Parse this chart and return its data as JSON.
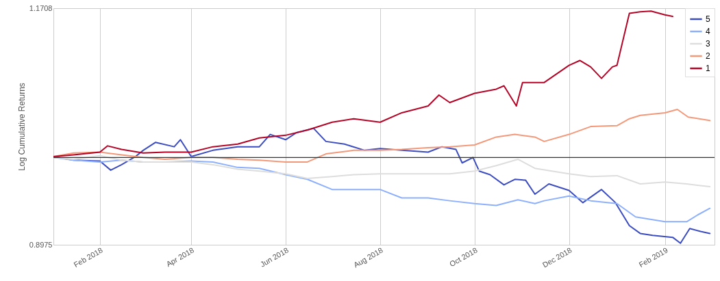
{
  "chart_data": {
    "type": "line",
    "ylabel": "Log Cumulative Returns",
    "log": "y",
    "grid": "x",
    "legend": "top right",
    "line_style": "solid",
    "marker": "none",
    "xlim": [
      "2018-01-02",
      "2019-03-05"
    ],
    "ylim": [
      0.8975,
      1.1708
    ],
    "yticks": [
      0.8975,
      1.1708
    ],
    "xticks": [
      {
        "value": "2018-02-01",
        "label": "Feb 2018"
      },
      {
        "value": "2018-04-01",
        "label": "Apr 2018"
      },
      {
        "value": "2018-06-01",
        "label": "Jun 2018"
      },
      {
        "value": "2018-08-01",
        "label": "Aug 2018"
      },
      {
        "value": "2018-10-01",
        "label": "Oct 2018"
      },
      {
        "value": "2018-12-01",
        "label": "Dec 2018"
      },
      {
        "value": "2019-02-01",
        "label": "Feb 2019"
      }
    ],
    "ref_lines": [
      {
        "axis": "y",
        "value": 0.99,
        "color": "#333333"
      }
    ],
    "series": [
      {
        "name": "5",
        "color": "#3b4cc0",
        "x": [
          "2018-01-02",
          "2018-01-15",
          "2018-02-01",
          "2018-02-08",
          "2018-02-15",
          "2018-02-24",
          "2018-03-01",
          "2018-03-09",
          "2018-03-21",
          "2018-03-25",
          "2018-04-01",
          "2018-04-15",
          "2018-05-01",
          "2018-05-15",
          "2018-05-22",
          "2018-06-01",
          "2018-06-08",
          "2018-06-19",
          "2018-06-27",
          "2018-07-09",
          "2018-07-22",
          "2018-08-01",
          "2018-08-15",
          "2018-09-01",
          "2018-09-10",
          "2018-09-19",
          "2018-09-23",
          "2018-09-30",
          "2018-10-04",
          "2018-10-11",
          "2018-10-20",
          "2018-10-27",
          "2018-11-03",
          "2018-11-09",
          "2018-11-18",
          "2018-12-01",
          "2018-12-10",
          "2018-12-22",
          "2018-12-31",
          "2019-01-09",
          "2019-01-16",
          "2019-01-24",
          "2019-02-06",
          "2019-02-11",
          "2019-02-17",
          "2019-02-24",
          "2019-03-02"
        ],
        "values": [
          0.991,
          0.987,
          0.986,
          0.976,
          0.982,
          0.991,
          0.998,
          1.007,
          1.002,
          1.01,
          0.991,
          0.998,
          1.002,
          1.002,
          1.016,
          1.01,
          1.018,
          1.023,
          1.008,
          1.005,
          0.998,
          1.0,
          0.998,
          0.996,
          1.002,
          0.999,
          0.984,
          0.99,
          0.975,
          0.971,
          0.96,
          0.966,
          0.965,
          0.95,
          0.961,
          0.954,
          0.941,
          0.955,
          0.941,
          0.917,
          0.909,
          0.907,
          0.905,
          0.899,
          0.914,
          0.911,
          0.909
        ]
      },
      {
        "name": "4",
        "color": "#8db0fe",
        "x": [
          "2018-01-02",
          "2018-01-15",
          "2018-02-01",
          "2018-02-15",
          "2018-03-01",
          "2018-03-15",
          "2018-04-01",
          "2018-04-15",
          "2018-05-01",
          "2018-05-15",
          "2018-06-01",
          "2018-06-15",
          "2018-07-01",
          "2018-07-15",
          "2018-08-01",
          "2018-08-15",
          "2018-09-01",
          "2018-09-15",
          "2018-10-01",
          "2018-10-15",
          "2018-10-29",
          "2018-11-09",
          "2018-11-15",
          "2018-12-01",
          "2018-12-15",
          "2019-01-01",
          "2019-01-13",
          "2019-02-01",
          "2019-02-15",
          "2019-02-22",
          "2019-03-02"
        ],
        "values": [
          0.99,
          0.987,
          0.985,
          0.987,
          0.985,
          0.985,
          0.986,
          0.985,
          0.979,
          0.978,
          0.971,
          0.966,
          0.955,
          0.955,
          0.955,
          0.946,
          0.946,
          0.943,
          0.94,
          0.938,
          0.944,
          0.94,
          0.943,
          0.948,
          0.943,
          0.94,
          0.926,
          0.921,
          0.921,
          0.928,
          0.935
        ]
      },
      {
        "name": "3",
        "color": "#dddddd",
        "x": [
          "2018-01-02",
          "2018-01-15",
          "2018-02-01",
          "2018-02-15",
          "2018-03-01",
          "2018-03-15",
          "2018-04-01",
          "2018-04-15",
          "2018-05-01",
          "2018-05-15",
          "2018-06-01",
          "2018-06-15",
          "2018-07-01",
          "2018-07-15",
          "2018-08-01",
          "2018-08-15",
          "2018-09-01",
          "2018-09-15",
          "2018-10-01",
          "2018-10-15",
          "2018-10-29",
          "2018-11-09",
          "2018-12-01",
          "2018-12-15",
          "2019-01-01",
          "2019-01-16",
          "2019-02-01",
          "2019-02-15",
          "2019-03-02"
        ],
        "values": [
          0.99,
          0.988,
          0.992,
          0.987,
          0.985,
          0.985,
          0.985,
          0.982,
          0.977,
          0.975,
          0.972,
          0.967,
          0.969,
          0.971,
          0.972,
          0.972,
          0.972,
          0.972,
          0.975,
          0.981,
          0.988,
          0.978,
          0.972,
          0.969,
          0.97,
          0.961,
          0.963,
          0.961,
          0.958
        ]
      },
      {
        "name": "2",
        "color": "#f4987a",
        "x": [
          "2018-01-02",
          "2018-01-15",
          "2018-02-01",
          "2018-02-15",
          "2018-03-01",
          "2018-03-15",
          "2018-04-01",
          "2018-04-15",
          "2018-05-01",
          "2018-05-15",
          "2018-06-01",
          "2018-06-15",
          "2018-06-27",
          "2018-07-15",
          "2018-08-01",
          "2018-08-15",
          "2018-09-01",
          "2018-09-15",
          "2018-10-01",
          "2018-10-15",
          "2018-10-27",
          "2018-11-09",
          "2018-11-15",
          "2018-12-01",
          "2018-12-15",
          "2019-01-01",
          "2019-01-09",
          "2019-01-16",
          "2019-02-01",
          "2019-02-09",
          "2019-02-16",
          "2019-03-02"
        ],
        "values": [
          0.991,
          0.995,
          0.996,
          0.993,
          0.99,
          0.988,
          0.99,
          0.99,
          0.988,
          0.987,
          0.985,
          0.985,
          0.994,
          0.998,
          0.998,
          0.999,
          1.001,
          1.002,
          1.004,
          1.013,
          1.016,
          1.013,
          1.008,
          1.016,
          1.025,
          1.026,
          1.034,
          1.038,
          1.041,
          1.045,
          1.036,
          1.032
        ]
      },
      {
        "name": "1",
        "color": "#b40426",
        "x": [
          "2018-01-02",
          "2018-01-15",
          "2018-02-01",
          "2018-02-06",
          "2018-02-15",
          "2018-03-01",
          "2018-03-15",
          "2018-04-01",
          "2018-04-15",
          "2018-05-01",
          "2018-05-15",
          "2018-06-01",
          "2018-06-15",
          "2018-07-01",
          "2018-07-15",
          "2018-08-01",
          "2018-08-15",
          "2018-09-01",
          "2018-09-08",
          "2018-09-15",
          "2018-10-01",
          "2018-10-15",
          "2018-10-20",
          "2018-10-28",
          "2018-11-01",
          "2018-11-15",
          "2018-12-01",
          "2018-12-08",
          "2018-12-15",
          "2018-12-22",
          "2018-12-29",
          "2019-01-01",
          "2019-01-09",
          "2019-01-16",
          "2019-01-23",
          "2019-02-01",
          "2019-02-06"
        ],
        "values": [
          0.991,
          0.993,
          0.996,
          1.003,
          0.999,
          0.995,
          0.996,
          0.996,
          1.002,
          1.005,
          1.012,
          1.015,
          1.021,
          1.03,
          1.034,
          1.03,
          1.041,
          1.049,
          1.062,
          1.053,
          1.064,
          1.069,
          1.073,
          1.049,
          1.077,
          1.077,
          1.098,
          1.104,
          1.096,
          1.082,
          1.096,
          1.098,
          1.164,
          1.166,
          1.167,
          1.162,
          1.16
        ]
      }
    ]
  }
}
